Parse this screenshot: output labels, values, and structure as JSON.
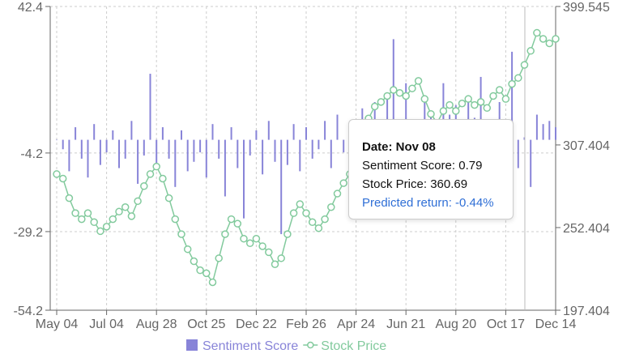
{
  "chart_data": {
    "type": "bar_line",
    "categories": [
      "May 04",
      null,
      null,
      null,
      null,
      null,
      null,
      null,
      "Jul 04",
      null,
      null,
      null,
      null,
      null,
      null,
      null,
      "Aug 28",
      null,
      null,
      null,
      null,
      null,
      null,
      null,
      "Oct 25",
      null,
      null,
      null,
      null,
      null,
      null,
      null,
      "Dec 22",
      null,
      null,
      null,
      null,
      null,
      null,
      null,
      "Feb 26",
      null,
      null,
      null,
      null,
      null,
      null,
      null,
      "Apr 24",
      null,
      null,
      null,
      null,
      null,
      null,
      null,
      "Jun 21",
      null,
      null,
      null,
      null,
      null,
      null,
      null,
      "Aug 20",
      null,
      null,
      null,
      null,
      null,
      null,
      null,
      "Oct 17",
      null,
      null,
      null,
      null,
      null,
      null,
      null,
      "Dec 14"
    ],
    "series": [
      {
        "name": "Sentiment Score",
        "type": "bar",
        "color": "#8884d8",
        "values": [
          0,
          -3,
          -10,
          4,
          -6,
          -12,
          5,
          -8,
          -4,
          3,
          -9,
          -6,
          6,
          -14,
          -5,
          21,
          -8,
          4,
          -6,
          -15,
          3,
          -10,
          -7,
          -4,
          -12,
          5,
          -6,
          -18,
          4,
          -9,
          -25,
          -5,
          3,
          -11,
          6,
          -7,
          -30,
          -8,
          5,
          -10,
          4,
          -6,
          -3,
          6,
          -9,
          8,
          -4,
          -10,
          -22,
          10,
          6,
          12,
          -5,
          15,
          32,
          -8,
          18,
          6,
          -4,
          14,
          9,
          -6,
          18,
          8,
          11,
          -5,
          13,
          7,
          20,
          4,
          -7,
          12,
          6,
          28,
          -9,
          0.79,
          -15,
          8,
          5,
          6,
          4
        ]
      },
      {
        "name": "Stock Price",
        "type": "line",
        "axis": "y2",
        "color": "#82ca9d",
        "values": [
          288,
          285,
          272,
          262,
          258,
          262,
          256,
          250,
          253,
          258,
          263,
          266,
          260,
          270,
          280,
          288,
          293,
          285,
          272,
          258,
          248,
          238,
          230,
          224,
          222,
          216,
          232,
          248,
          258,
          255,
          245,
          242,
          245,
          240,
          236,
          228,
          232,
          248,
          262,
          268,
          262,
          256,
          252,
          258,
          266,
          275,
          282,
          288,
          292,
          310,
          325,
          333,
          336,
          340,
          344,
          342,
          340,
          345,
          350,
          338,
          328,
          322,
          330,
          334,
          330,
          335,
          338,
          334,
          336,
          332,
          340,
          344,
          338,
          348,
          352,
          360.69,
          370,
          382,
          378,
          375,
          378
        ]
      }
    ],
    "ylim": [
      -54.2,
      42.4
    ],
    "yticks": [
      -54.2,
      -29.2,
      -4.2,
      42.4
    ],
    "y2lim": [
      197.404,
      399.545
    ],
    "y2ticks": [
      197.404,
      252.404,
      307.404,
      399.545
    ],
    "grid": true,
    "legend": "bottom",
    "tooltip": {
      "title": "Date: Nov 08",
      "lines": [
        "Sentiment Score: 0.79",
        "Stock Price: 360.69",
        "Predicted return: -0.44%"
      ]
    }
  }
}
